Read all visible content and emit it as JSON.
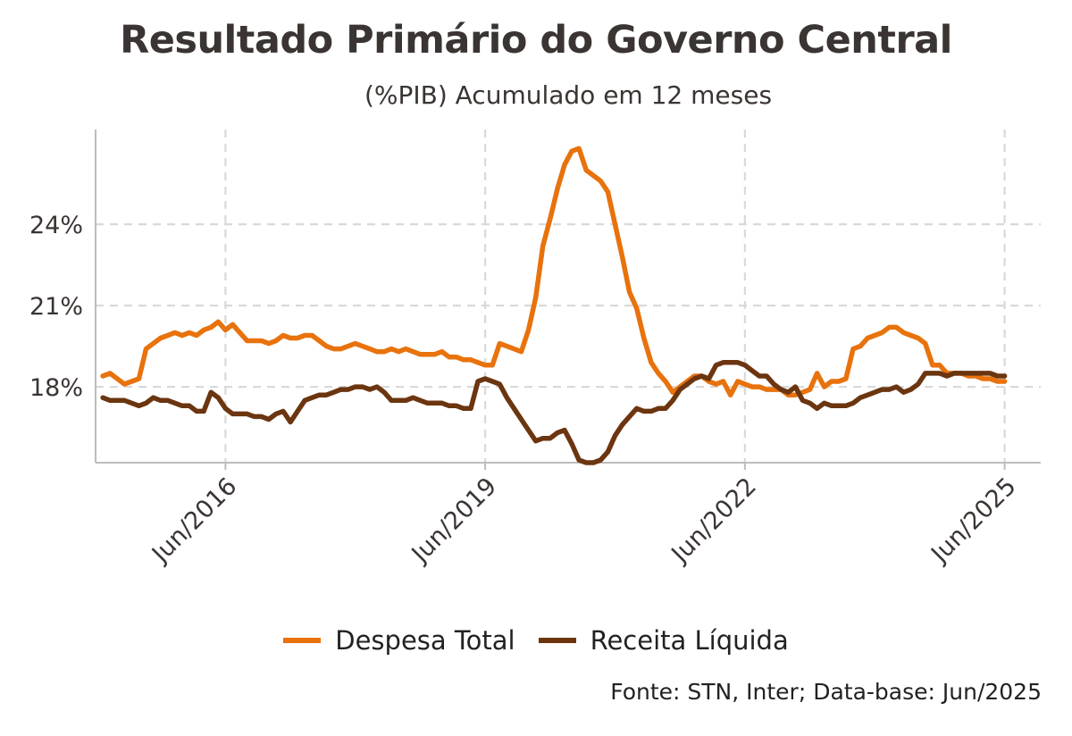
{
  "title": "Resultado Primário do Governo Central",
  "subtitle": "(%PIB) Acumulado em 12 meses",
  "caption": "Fonte: STN, Inter; Data-base: Jun/2025",
  "colors": {
    "despesa": "#e8720c",
    "receita": "#6b3510",
    "grid": "#d9d9d9",
    "axis": "#bdbdbd",
    "text": "#3a3432"
  },
  "chart_data": {
    "type": "line",
    "grid": true,
    "legend_position": "bottom",
    "x_tick_labels": [
      "Jun/2016",
      "Jun/2019",
      "Jun/2022",
      "Jun/2025"
    ],
    "y_tick_labels": [
      "18%",
      "21%",
      "24%"
    ],
    "y_ticks": [
      18,
      21,
      24
    ],
    "ylim": [
      15.2,
      27.5
    ],
    "xlim": [
      "2014-12",
      "2025-11"
    ],
    "series": [
      {
        "name": "Despesa Total",
        "color": "#e8720c",
        "points": [
          [
            "2015-01",
            18.4
          ],
          [
            "2015-02",
            18.5
          ],
          [
            "2015-03",
            18.3
          ],
          [
            "2015-04",
            18.1
          ],
          [
            "2015-05",
            18.2
          ],
          [
            "2015-06",
            18.3
          ],
          [
            "2015-07",
            19.4
          ],
          [
            "2015-08",
            19.6
          ],
          [
            "2015-09",
            19.8
          ],
          [
            "2015-10",
            19.9
          ],
          [
            "2015-11",
            20.0
          ],
          [
            "2015-12",
            19.9
          ],
          [
            "2016-01",
            20.0
          ],
          [
            "2016-02",
            19.9
          ],
          [
            "2016-03",
            20.1
          ],
          [
            "2016-04",
            20.2
          ],
          [
            "2016-05",
            20.4
          ],
          [
            "2016-06",
            20.1
          ],
          [
            "2016-07",
            20.3
          ],
          [
            "2016-08",
            20.0
          ],
          [
            "2016-09",
            19.7
          ],
          [
            "2016-10",
            19.7
          ],
          [
            "2016-11",
            19.7
          ],
          [
            "2016-12",
            19.6
          ],
          [
            "2017-01",
            19.7
          ],
          [
            "2017-02",
            19.9
          ],
          [
            "2017-03",
            19.8
          ],
          [
            "2017-04",
            19.8
          ],
          [
            "2017-05",
            19.9
          ],
          [
            "2017-06",
            19.9
          ],
          [
            "2017-07",
            19.7
          ],
          [
            "2017-08",
            19.5
          ],
          [
            "2017-09",
            19.4
          ],
          [
            "2017-10",
            19.4
          ],
          [
            "2017-11",
            19.5
          ],
          [
            "2017-12",
            19.6
          ],
          [
            "2018-01",
            19.5
          ],
          [
            "2018-02",
            19.4
          ],
          [
            "2018-03",
            19.3
          ],
          [
            "2018-04",
            19.3
          ],
          [
            "2018-05",
            19.4
          ],
          [
            "2018-06",
            19.3
          ],
          [
            "2018-07",
            19.4
          ],
          [
            "2018-08",
            19.3
          ],
          [
            "2018-09",
            19.2
          ],
          [
            "2018-10",
            19.2
          ],
          [
            "2018-11",
            19.2
          ],
          [
            "2018-12",
            19.3
          ],
          [
            "2019-01",
            19.1
          ],
          [
            "2019-02",
            19.1
          ],
          [
            "2019-03",
            19.0
          ],
          [
            "2019-04",
            19.0
          ],
          [
            "2019-05",
            18.9
          ],
          [
            "2019-06",
            18.8
          ],
          [
            "2019-07",
            18.8
          ],
          [
            "2019-08",
            19.6
          ],
          [
            "2019-09",
            19.5
          ],
          [
            "2019-10",
            19.4
          ],
          [
            "2019-11",
            19.3
          ],
          [
            "2019-12",
            20.1
          ],
          [
            "2020-01",
            21.3
          ],
          [
            "2020-02",
            23.2
          ],
          [
            "2020-03",
            24.2
          ],
          [
            "2020-04",
            25.3
          ],
          [
            "2020-05",
            26.2
          ],
          [
            "2020-06",
            26.7
          ],
          [
            "2020-07",
            26.8
          ],
          [
            "2020-08",
            26.0
          ],
          [
            "2020-09",
            25.8
          ],
          [
            "2020-10",
            25.6
          ],
          [
            "2020-11",
            25.2
          ],
          [
            "2020-12",
            24.0
          ],
          [
            "2021-01",
            22.8
          ],
          [
            "2021-02",
            21.5
          ],
          [
            "2021-03",
            20.9
          ],
          [
            "2021-04",
            19.8
          ],
          [
            "2021-05",
            18.9
          ],
          [
            "2021-06",
            18.5
          ],
          [
            "2021-07",
            18.2
          ],
          [
            "2021-08",
            17.8
          ],
          [
            "2021-09",
            18.0
          ],
          [
            "2021-10",
            18.2
          ],
          [
            "2021-11",
            18.4
          ],
          [
            "2021-12",
            18.4
          ],
          [
            "2022-01",
            18.2
          ],
          [
            "2022-02",
            18.1
          ],
          [
            "2022-03",
            18.2
          ],
          [
            "2022-04",
            17.7
          ],
          [
            "2022-05",
            18.2
          ],
          [
            "2022-06",
            18.1
          ],
          [
            "2022-07",
            18.0
          ],
          [
            "2022-08",
            18.0
          ],
          [
            "2022-09",
            17.9
          ],
          [
            "2022-10",
            17.9
          ],
          [
            "2022-11",
            17.9
          ],
          [
            "2022-12",
            17.7
          ],
          [
            "2023-01",
            17.7
          ],
          [
            "2023-02",
            17.8
          ],
          [
            "2023-03",
            17.9
          ],
          [
            "2023-04",
            18.5
          ],
          [
            "2023-05",
            18.0
          ],
          [
            "2023-06",
            18.2
          ],
          [
            "2023-07",
            18.2
          ],
          [
            "2023-08",
            18.3
          ],
          [
            "2023-09",
            19.4
          ],
          [
            "2023-10",
            19.5
          ],
          [
            "2023-11",
            19.8
          ],
          [
            "2023-12",
            19.9
          ],
          [
            "2024-01",
            20.0
          ],
          [
            "2024-02",
            20.2
          ],
          [
            "2024-03",
            20.2
          ],
          [
            "2024-04",
            20.0
          ],
          [
            "2024-05",
            19.9
          ],
          [
            "2024-06",
            19.8
          ],
          [
            "2024-07",
            19.6
          ],
          [
            "2024-08",
            18.8
          ],
          [
            "2024-09",
            18.8
          ],
          [
            "2024-10",
            18.5
          ],
          [
            "2024-11",
            18.5
          ],
          [
            "2024-12",
            18.5
          ],
          [
            "2025-01",
            18.4
          ],
          [
            "2025-02",
            18.4
          ],
          [
            "2025-03",
            18.3
          ],
          [
            "2025-04",
            18.3
          ],
          [
            "2025-05",
            18.2
          ],
          [
            "2025-06",
            18.2
          ]
        ]
      },
      {
        "name": "Receita Líquida",
        "color": "#6b3510",
        "points": [
          [
            "2015-01",
            17.6
          ],
          [
            "2015-02",
            17.5
          ],
          [
            "2015-03",
            17.5
          ],
          [
            "2015-04",
            17.5
          ],
          [
            "2015-05",
            17.4
          ],
          [
            "2015-06",
            17.3
          ],
          [
            "2015-07",
            17.4
          ],
          [
            "2015-08",
            17.6
          ],
          [
            "2015-09",
            17.5
          ],
          [
            "2015-10",
            17.5
          ],
          [
            "2015-11",
            17.4
          ],
          [
            "2015-12",
            17.3
          ],
          [
            "2016-01",
            17.3
          ],
          [
            "2016-02",
            17.1
          ],
          [
            "2016-03",
            17.1
          ],
          [
            "2016-04",
            17.8
          ],
          [
            "2016-05",
            17.6
          ],
          [
            "2016-06",
            17.2
          ],
          [
            "2016-07",
            17.0
          ],
          [
            "2016-08",
            17.0
          ],
          [
            "2016-09",
            17.0
          ],
          [
            "2016-10",
            16.9
          ],
          [
            "2016-11",
            16.9
          ],
          [
            "2016-12",
            16.8
          ],
          [
            "2017-01",
            17.0
          ],
          [
            "2017-02",
            17.1
          ],
          [
            "2017-03",
            16.7
          ],
          [
            "2017-04",
            17.1
          ],
          [
            "2017-05",
            17.5
          ],
          [
            "2017-06",
            17.6
          ],
          [
            "2017-07",
            17.7
          ],
          [
            "2017-08",
            17.7
          ],
          [
            "2017-09",
            17.8
          ],
          [
            "2017-10",
            17.9
          ],
          [
            "2017-11",
            17.9
          ],
          [
            "2017-12",
            18.0
          ],
          [
            "2018-01",
            18.0
          ],
          [
            "2018-02",
            17.9
          ],
          [
            "2018-03",
            18.0
          ],
          [
            "2018-04",
            17.8
          ],
          [
            "2018-05",
            17.5
          ],
          [
            "2018-06",
            17.5
          ],
          [
            "2018-07",
            17.5
          ],
          [
            "2018-08",
            17.6
          ],
          [
            "2018-09",
            17.5
          ],
          [
            "2018-10",
            17.4
          ],
          [
            "2018-11",
            17.4
          ],
          [
            "2018-12",
            17.4
          ],
          [
            "2019-01",
            17.3
          ],
          [
            "2019-02",
            17.3
          ],
          [
            "2019-03",
            17.2
          ],
          [
            "2019-04",
            17.2
          ],
          [
            "2019-05",
            18.2
          ],
          [
            "2019-06",
            18.3
          ],
          [
            "2019-07",
            18.2
          ],
          [
            "2019-08",
            18.1
          ],
          [
            "2019-09",
            17.6
          ],
          [
            "2019-10",
            17.2
          ],
          [
            "2019-11",
            16.8
          ],
          [
            "2019-12",
            16.4
          ],
          [
            "2020-01",
            16.0
          ],
          [
            "2020-02",
            16.1
          ],
          [
            "2020-03",
            16.1
          ],
          [
            "2020-04",
            16.3
          ],
          [
            "2020-05",
            16.4
          ],
          [
            "2020-06",
            15.9
          ],
          [
            "2020-07",
            15.3
          ],
          [
            "2020-08",
            15.2
          ],
          [
            "2020-09",
            15.2
          ],
          [
            "2020-10",
            15.3
          ],
          [
            "2020-11",
            15.6
          ],
          [
            "2020-12",
            16.2
          ],
          [
            "2021-01",
            16.6
          ],
          [
            "2021-02",
            16.9
          ],
          [
            "2021-03",
            17.2
          ],
          [
            "2021-04",
            17.1
          ],
          [
            "2021-05",
            17.1
          ],
          [
            "2021-06",
            17.2
          ],
          [
            "2021-07",
            17.2
          ],
          [
            "2021-08",
            17.5
          ],
          [
            "2021-09",
            17.9
          ],
          [
            "2021-10",
            18.1
          ],
          [
            "2021-11",
            18.3
          ],
          [
            "2021-12",
            18.4
          ],
          [
            "2022-01",
            18.3
          ],
          [
            "2022-02",
            18.8
          ],
          [
            "2022-03",
            18.9
          ],
          [
            "2022-04",
            18.9
          ],
          [
            "2022-05",
            18.9
          ],
          [
            "2022-06",
            18.8
          ],
          [
            "2022-07",
            18.6
          ],
          [
            "2022-08",
            18.4
          ],
          [
            "2022-09",
            18.4
          ],
          [
            "2022-10",
            18.1
          ],
          [
            "2022-11",
            17.9
          ],
          [
            "2022-12",
            17.8
          ],
          [
            "2023-01",
            18.0
          ],
          [
            "2023-02",
            17.5
          ],
          [
            "2023-03",
            17.4
          ],
          [
            "2023-04",
            17.2
          ],
          [
            "2023-05",
            17.4
          ],
          [
            "2023-06",
            17.3
          ],
          [
            "2023-07",
            17.3
          ],
          [
            "2023-08",
            17.3
          ],
          [
            "2023-09",
            17.4
          ],
          [
            "2023-10",
            17.6
          ],
          [
            "2023-11",
            17.7
          ],
          [
            "2023-12",
            17.8
          ],
          [
            "2024-01",
            17.9
          ],
          [
            "2024-02",
            17.9
          ],
          [
            "2024-03",
            18.0
          ],
          [
            "2024-04",
            17.8
          ],
          [
            "2024-05",
            17.9
          ],
          [
            "2024-06",
            18.1
          ],
          [
            "2024-07",
            18.5
          ],
          [
            "2024-08",
            18.5
          ],
          [
            "2024-09",
            18.5
          ],
          [
            "2024-10",
            18.4
          ],
          [
            "2024-11",
            18.5
          ],
          [
            "2024-12",
            18.5
          ],
          [
            "2025-01",
            18.5
          ],
          [
            "2025-02",
            18.5
          ],
          [
            "2025-03",
            18.5
          ],
          [
            "2025-04",
            18.5
          ],
          [
            "2025-05",
            18.4
          ],
          [
            "2025-06",
            18.4
          ]
        ]
      }
    ]
  }
}
